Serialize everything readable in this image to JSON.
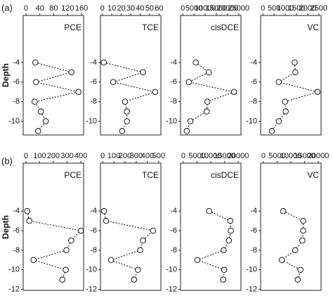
{
  "rows": [
    {
      "label": "(a)",
      "y_label": "Depth"
    },
    {
      "label": "(b)",
      "y_label": "Depth"
    }
  ],
  "chart_data": [
    {
      "type": "line",
      "title": "PCE",
      "color": "#000000",
      "linestyle": "dashed",
      "x": [
        27,
        131,
        29,
        151,
        25,
        43,
        57,
        35
      ],
      "y": [
        -4,
        -5,
        -6,
        -7,
        -8,
        -9,
        -10,
        -11
      ],
      "xlim": [
        -8,
        166
      ],
      "xticks": [
        0,
        40,
        80,
        120,
        160
      ],
      "ylim": [
        -11.4,
        0.8
      ],
      "yticks": [
        -4,
        -6,
        -8,
        -10
      ]
    },
    {
      "type": "line",
      "title": "TCE",
      "color": "#000000",
      "linestyle": "dashed",
      "x": [
        1.5,
        43,
        11.5,
        56,
        24,
        26,
        26,
        21
      ],
      "y": [
        -4,
        -5,
        -6,
        -7,
        -8,
        -9,
        -10,
        -11
      ],
      "xlim": [
        -2,
        62
      ],
      "xticks": [
        0,
        10,
        20,
        30,
        40,
        50,
        60
      ],
      "ylim": [
        -11.4,
        0.8
      ],
      "yticks": [
        -4,
        -6,
        -8,
        -10
      ]
    },
    {
      "type": "line",
      "title": "cisDCE",
      "color": "#000000",
      "linestyle": "dashed",
      "x": [
        5800,
        11600,
        2700,
        22900,
        11000,
        10700,
        3400,
        1800
      ],
      "y": [
        -4,
        -5,
        -6,
        -7,
        -8,
        -9,
        -10,
        -11
      ],
      "xlim": [
        -1000,
        26000
      ],
      "xticks": [
        0,
        5000,
        10000,
        15000,
        20000,
        25000
      ],
      "ylim": [
        -11.4,
        0.8
      ],
      "yticks": [
        -4,
        -6,
        -8,
        -10
      ]
    },
    {
      "type": "line",
      "title": "VC",
      "color": "#000000",
      "linestyle": "dashed",
      "x": [
        1420,
        1450,
        710,
        2440,
        990,
        1020,
        710,
        400
      ],
      "y": [
        -4,
        -5,
        -6,
        -7,
        -8,
        -9,
        -10,
        -11
      ],
      "xlim": [
        -100,
        2600
      ],
      "xticks": [
        0,
        500,
        1000,
        1500,
        2000,
        2500
      ],
      "ylim": [
        -11.4,
        0.8
      ],
      "yticks": [
        -4,
        -6,
        -8,
        -10
      ]
    },
    {
      "type": "line",
      "title": "PCE",
      "color": "#000000",
      "linestyle": "dashed",
      "x": [
        10,
        25,
        400,
        330,
        295,
        55,
        290,
        265
      ],
      "y": [
        -4,
        -5,
        -6,
        -7,
        -8,
        -9,
        -10,
        -11
      ],
      "xlim": [
        -20,
        420
      ],
      "xticks": [
        0,
        100,
        200,
        300,
        400
      ],
      "ylim": [
        -12.1,
        0.9
      ],
      "yticks": [
        -4,
        -6,
        -8,
        -10,
        -12
      ]
    },
    {
      "type": "line",
      "title": "TCE",
      "color": "#000000",
      "linestyle": "dashed",
      "x": [
        12,
        30,
        450,
        360,
        335,
        75,
        315,
        280
      ],
      "y": [
        -4,
        -5,
        -6,
        -7,
        -8,
        -9,
        -10,
        -11
      ],
      "xlim": [
        -20,
        520
      ],
      "xticks": [
        0,
        100,
        200,
        300,
        400,
        500
      ],
      "ylim": [
        -12.1,
        0.9
      ],
      "yticks": [
        -4,
        -6,
        -8,
        -10,
        -12
      ]
    },
    {
      "type": "line",
      "title": "cisDCE",
      "color": "#000000",
      "linestyle": "dashed",
      "x": [
        9400,
        17100,
        17300,
        16600,
        14700,
        5100,
        14900,
        14500
      ],
      "y": [
        -4,
        -5,
        -6,
        -7,
        -8,
        -9,
        -10,
        -11
      ],
      "xlim": [
        -1000,
        21000
      ],
      "xticks": [
        0,
        5000,
        10000,
        15000,
        20000
      ],
      "ylim": [
        -12.1,
        0.9
      ],
      "yticks": [
        -4,
        -6,
        -8,
        -10,
        -12
      ]
    },
    {
      "type": "line",
      "title": "VC",
      "color": "#000000",
      "linestyle": "dashed",
      "x": [
        7200,
        14500,
        14500,
        14200,
        11600,
        6700,
        13500,
        12500
      ],
      "y": [
        -4,
        -5,
        -6,
        -7,
        -8,
        -9,
        -10,
        -11
      ],
      "xlim": [
        -1000,
        21000
      ],
      "xticks": [
        0,
        5000,
        10000,
        15000,
        20000
      ],
      "ylim": [
        -12.1,
        0.9
      ],
      "yticks": [
        -4,
        -6,
        -8,
        -10,
        -12
      ]
    }
  ]
}
